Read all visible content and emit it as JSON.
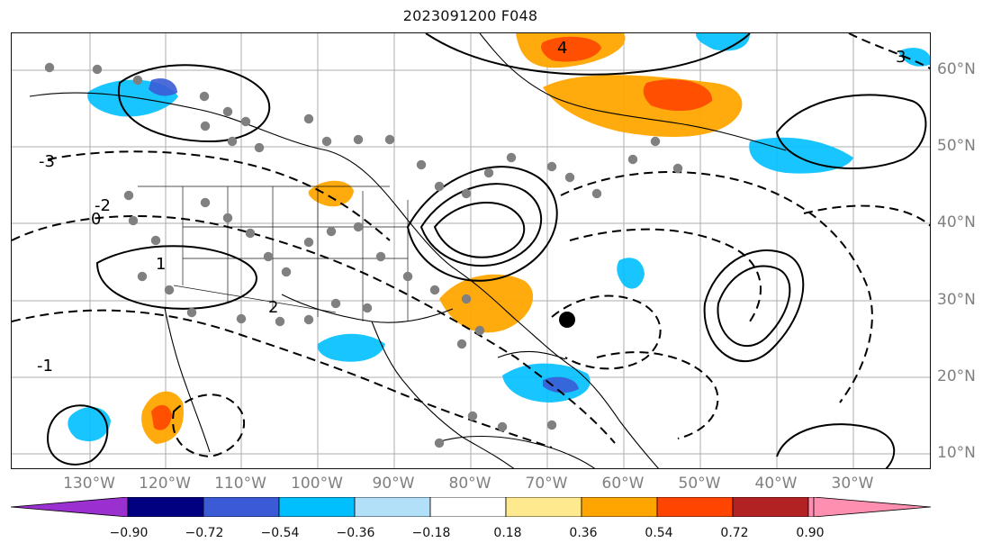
{
  "figure": {
    "title": "2023091200 F048"
  },
  "map": {
    "type": "contour-anomaly-map",
    "projection": "cylindrical",
    "lon_range": [
      "140°W",
      "20°W"
    ],
    "lat_range": [
      "8°N",
      "65°N"
    ],
    "x_ticks": [
      "130°W",
      "120°W",
      "110°W",
      "100°W",
      "90°W",
      "80°W",
      "70°W",
      "60°W",
      "50°W",
      "40°W",
      "30°W"
    ],
    "y_ticks": [
      "60°N",
      "50°N",
      "40°N",
      "30°N",
      "20°N",
      "10°N"
    ],
    "gridlines": true,
    "contour_labels": [
      "-3",
      "-2",
      "-1",
      "0",
      "1",
      "2",
      "3",
      "4"
    ],
    "contour_line_color": "#000000",
    "station_marker_color": "#808080",
    "highlight_marker_color": "#000000"
  },
  "colorbar": {
    "ticks": [
      "−0.90",
      "−0.72",
      "−0.54",
      "−0.36",
      "−0.18",
      "0.18",
      "0.36",
      "0.54",
      "0.72",
      "0.90"
    ],
    "colors": [
      "#9933cc",
      "#9b30d0",
      "#000080",
      "#3b5bd6",
      "#00bfff",
      "#b2e0f8",
      "#ffffff",
      "#ffe98f",
      "#ffa500",
      "#ff4500",
      "#b22222",
      "#ff8fb0",
      "#ff8fb0"
    ],
    "extend": "both"
  }
}
